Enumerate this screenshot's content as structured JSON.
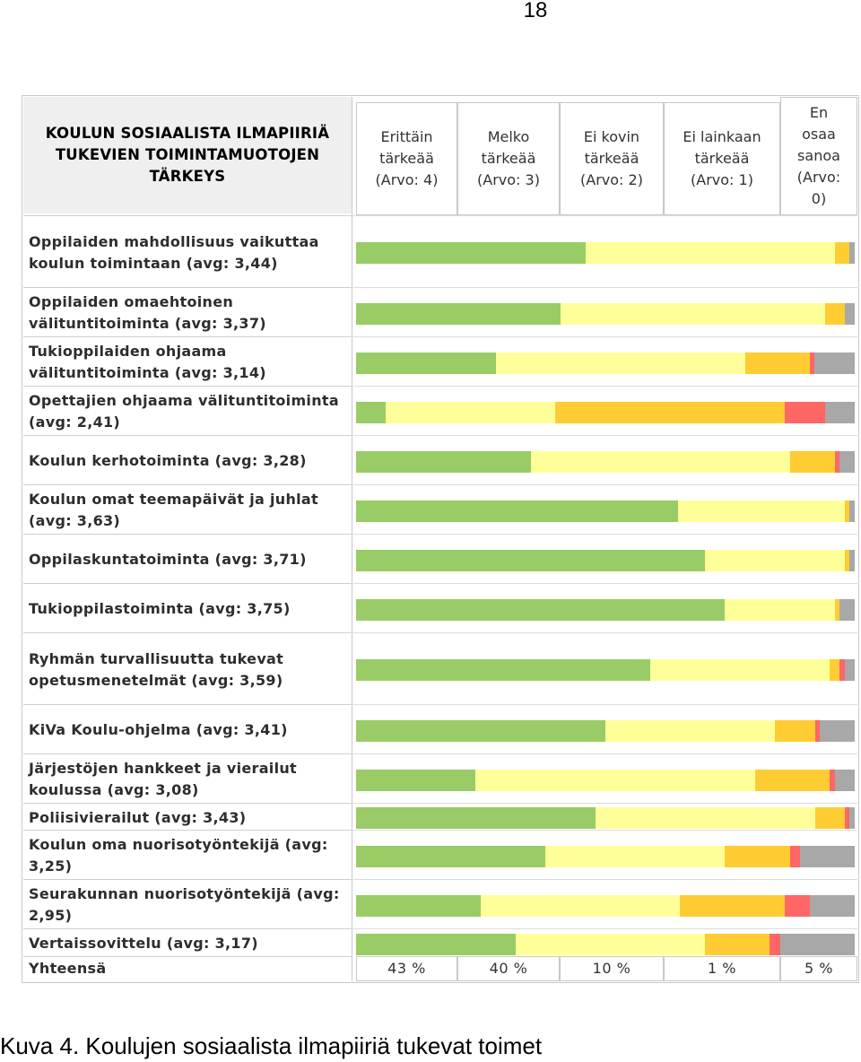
{
  "page_number": "18",
  "caption": "Kuva 4. Koulujen sosiaalista ilmapiiriä tukevat toimet",
  "chart_data": {
    "type": "bar",
    "stacked": true,
    "orientation": "horizontal",
    "title": "KOULUN SOSIAALISTA ILMAPIIRIÄ TUKEVIEN TOIMINTAMUOTOJEN TÄRKEYS",
    "series": [
      {
        "name": "Erittäin tärkeää (Arvo: 4)",
        "color": "#99cc66",
        "values": [
          46,
          41,
          28,
          6,
          35,
          64,
          70,
          74,
          59,
          50,
          24,
          48,
          38,
          25,
          32
        ]
      },
      {
        "name": "Melko tärkeää (Arvo: 3)",
        "color": "#ffff99",
        "values": [
          50,
          53,
          50,
          34,
          52,
          33,
          28,
          22,
          36,
          34,
          56,
          44,
          36,
          40,
          38
        ]
      },
      {
        "name": "Ei kovin tärkeää (Arvo: 2)",
        "color": "#ffcc33",
        "values": [
          3,
          4,
          13,
          46,
          9,
          1,
          1,
          1,
          2,
          8,
          15,
          6,
          13,
          21,
          13
        ]
      },
      {
        "name": "Ei lainkaan tärkeää (Arvo: 1)",
        "color": "#ff6666",
        "values": [
          0,
          0,
          1,
          8,
          1,
          0,
          0,
          0,
          1,
          1,
          1,
          1,
          2,
          5,
          2
        ]
      },
      {
        "name": "En osaa sanoa (Arvo: 0)",
        "color": "#a8a8a8",
        "values": [
          1,
          2,
          8,
          6,
          3,
          1,
          1,
          3,
          2,
          7,
          4,
          1,
          11,
          9,
          15
        ]
      }
    ],
    "categories": [
      "Oppilaiden mahdollisuus vaikuttaa koulun toimintaan (avg: 3,44)",
      "Oppilaiden omaehtoinen välituntitoiminta (avg: 3,37)",
      "Tukioppilaiden ohjaama välituntitoiminta (avg: 3,14)",
      "Opettajien ohjaama välituntitoiminta (avg: 2,41)",
      "Koulun kerhotoiminta (avg: 3,28)",
      "Koulun omat teemapäivät ja juhlat (avg: 3,63)",
      "Oppilaskuntatoiminta (avg: 3,71)",
      "Tukioppilastoiminta (avg: 3,75)",
      "Ryhmän turvallisuutta tukevat opetusmenetelmät (avg: 3,59)",
      "KiVa Koulu-ohjelma (avg: 3,41)",
      "Järjestöjen hankkeet ja vierailut koulussa (avg: 3,08)",
      "Poliisivierailut (avg: 3,43)",
      "Koulun oma nuorisotyöntekijä (avg: 3,25)",
      "Seurakunnan nuorisotyöntekijä (avg: 2,95)",
      "Vertaissovittelu (avg: 3,17)"
    ],
    "headers": [
      "Erittäin\ntärkeää\n(Arvo: 4)",
      "Melko\ntärkeää\n(Arvo: 3)",
      "Ei kovin\ntärkeää\n(Arvo: 2)",
      "Ei lainkaan\ntärkeää\n(Arvo: 1)",
      "En\nosaa\nsanoa\n(Arvo:\n0)"
    ],
    "total": {
      "label": "Yhteensä",
      "values": [
        "43 %",
        "40 %",
        "10 %",
        "1 %",
        "5 %"
      ]
    },
    "xlim": [
      0,
      100
    ]
  }
}
